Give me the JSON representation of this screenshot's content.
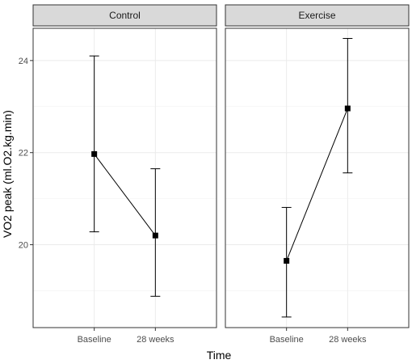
{
  "chart_data": {
    "type": "line",
    "xlabel": "Time",
    "ylabel": "VO2 peak (ml.O2.kg.min)",
    "ylim": [
      18.2,
      24.7
    ],
    "yticks": [
      20,
      22,
      24
    ],
    "y_minor_ticks": [
      19,
      21,
      23
    ],
    "grid": true,
    "categories": [
      "Baseline",
      "28 weeks"
    ],
    "panels": [
      {
        "name": "Control",
        "points": [
          {
            "x": "Baseline",
            "y": 21.97,
            "lower": 20.28,
            "upper": 24.1
          },
          {
            "x": "28 weeks",
            "y": 20.2,
            "lower": 18.88,
            "upper": 21.65
          }
        ]
      },
      {
        "name": "Exercise",
        "points": [
          {
            "x": "Baseline",
            "y": 19.65,
            "lower": 18.43,
            "upper": 20.81
          },
          {
            "x": "28 weeks",
            "y": 22.96,
            "lower": 21.56,
            "upper": 24.48
          }
        ]
      }
    ]
  }
}
